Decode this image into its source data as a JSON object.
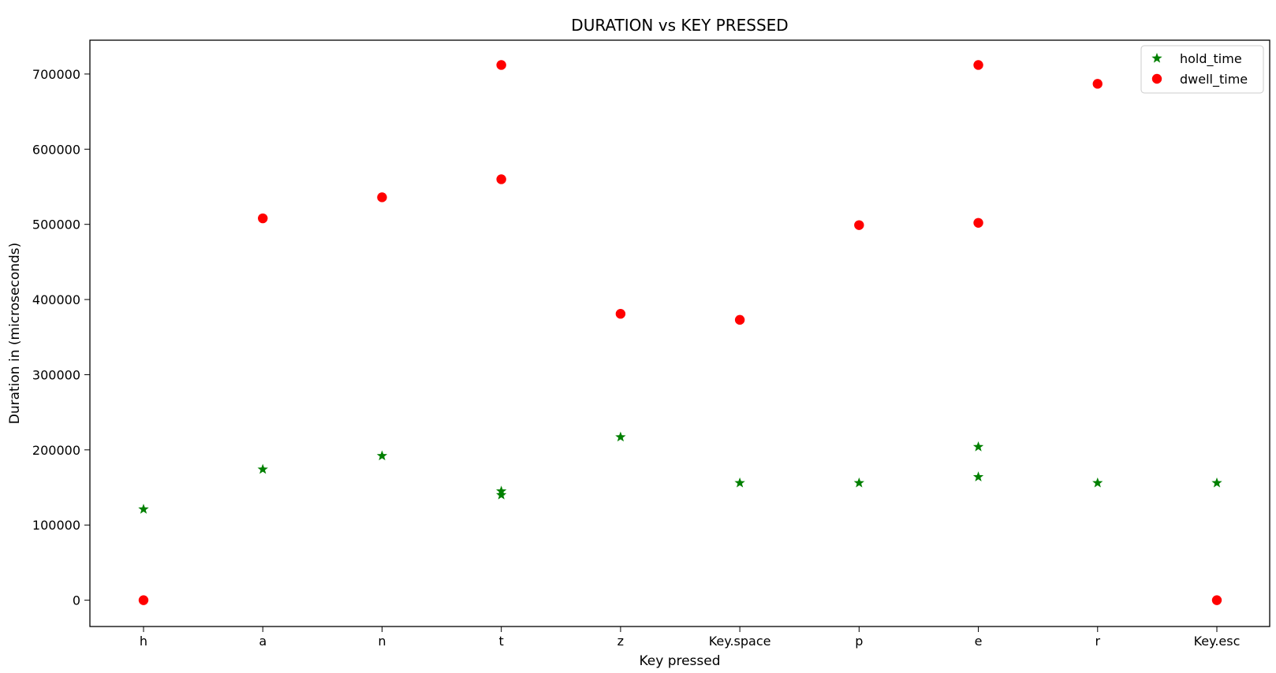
{
  "chart_data": {
    "type": "scatter",
    "title": "DURATION vs KEY PRESSED",
    "xlabel": "Key pressed",
    "ylabel": "Duration in (microseconds)",
    "categories": [
      "h",
      "a",
      "n",
      "t",
      "z",
      "Key.space",
      "p",
      "e",
      "r",
      "Key.esc"
    ],
    "ylim": [
      -35000,
      745000
    ],
    "yticks": [
      0,
      100000,
      200000,
      300000,
      400000,
      500000,
      600000,
      700000
    ],
    "ytick_labels": [
      "0",
      "100000",
      "200000",
      "300000",
      "400000",
      "500000",
      "600000",
      "700000"
    ],
    "grid": false,
    "legend_position": "top-right",
    "series": [
      {
        "name": "hold_time",
        "marker": "star",
        "color": "#008000",
        "points": [
          {
            "x": "h",
            "y": 121000
          },
          {
            "x": "a",
            "y": 174000
          },
          {
            "x": "n",
            "y": 192000
          },
          {
            "x": "t",
            "y": 145000
          },
          {
            "x": "t",
            "y": 140000
          },
          {
            "x": "z",
            "y": 217000
          },
          {
            "x": "Key.space",
            "y": 156000
          },
          {
            "x": "p",
            "y": 156000
          },
          {
            "x": "e",
            "y": 204000
          },
          {
            "x": "e",
            "y": 164000
          },
          {
            "x": "r",
            "y": 156000
          },
          {
            "x": "Key.esc",
            "y": 156000
          }
        ]
      },
      {
        "name": "dwell_time",
        "marker": "circle",
        "color": "#ff0000",
        "points": [
          {
            "x": "h",
            "y": 0
          },
          {
            "x": "a",
            "y": 508000
          },
          {
            "x": "n",
            "y": 536000
          },
          {
            "x": "t",
            "y": 712000
          },
          {
            "x": "t",
            "y": 560000
          },
          {
            "x": "z",
            "y": 381000
          },
          {
            "x": "Key.space",
            "y": 373000
          },
          {
            "x": "p",
            "y": 499000
          },
          {
            "x": "e",
            "y": 712000
          },
          {
            "x": "e",
            "y": 502000
          },
          {
            "x": "r",
            "y": 687000
          },
          {
            "x": "Key.esc",
            "y": 0
          }
        ]
      }
    ]
  }
}
